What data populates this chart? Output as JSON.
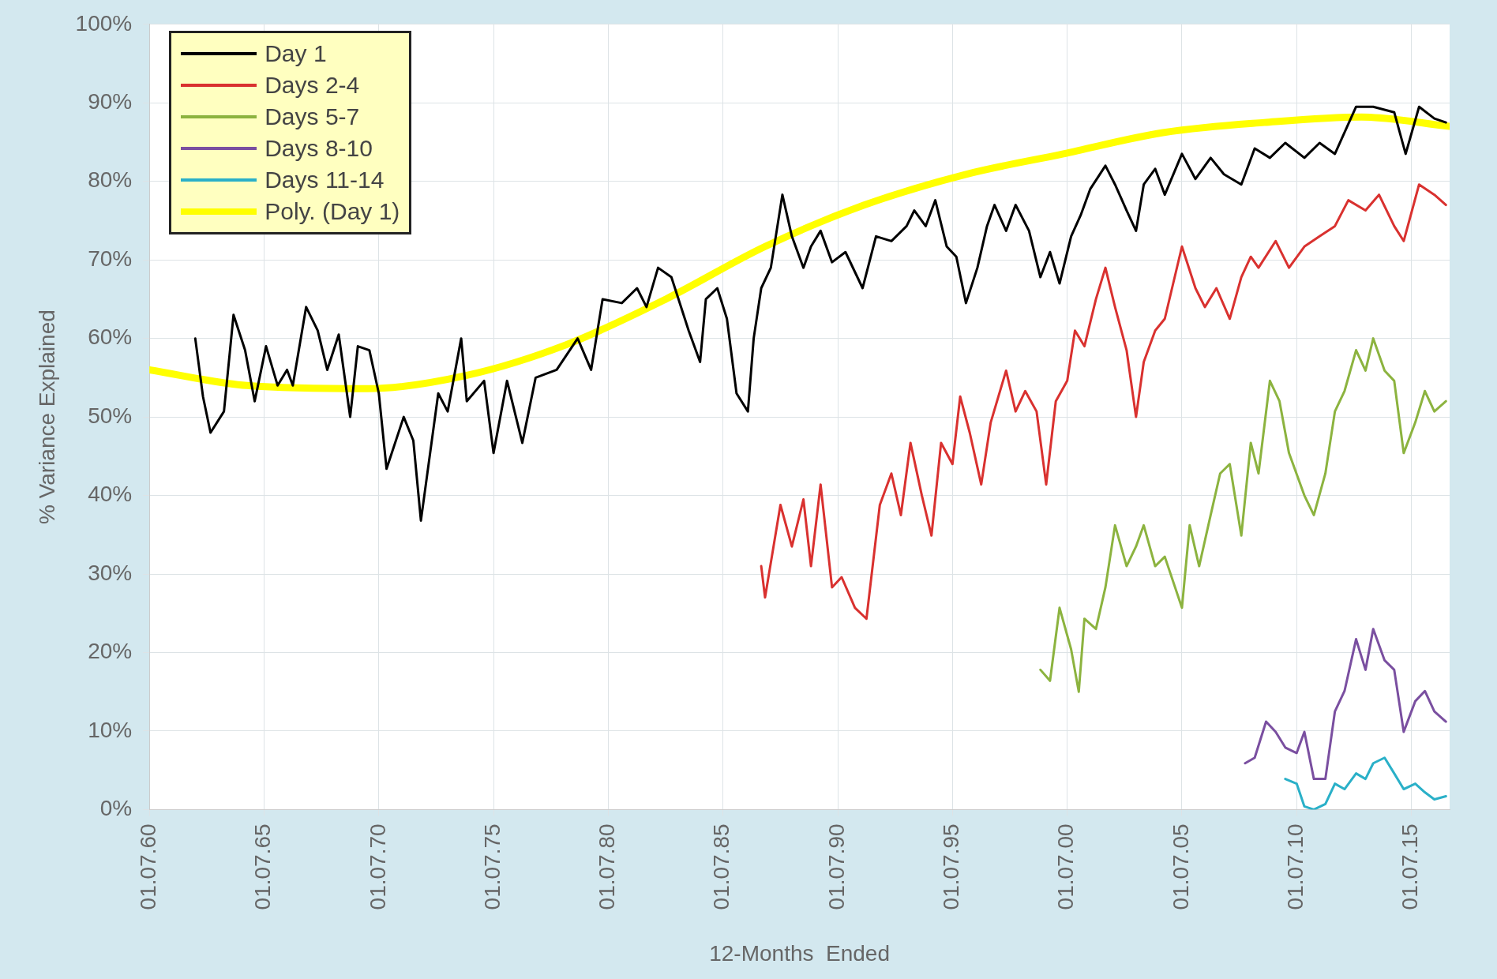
{
  "chart_data": {
    "type": "line",
    "xlabel": "12-Months  Ended",
    "ylabel": "% Variance Explained",
    "xlim": [
      "1960-07",
      "2017-03"
    ],
    "xticks": [
      {
        "value": "1960-07-01",
        "label": "01.07.60"
      },
      {
        "value": "1965-07-01",
        "label": "01.07.65"
      },
      {
        "value": "1970-07-01",
        "label": "01.07.70"
      },
      {
        "value": "1975-07-01",
        "label": "01.07.75"
      },
      {
        "value": "1980-07-01",
        "label": "01.07.80"
      },
      {
        "value": "1985-07-01",
        "label": "01.07.85"
      },
      {
        "value": "1990-07-01",
        "label": "01.07.90"
      },
      {
        "value": "1995-07-01",
        "label": "01.07.95"
      },
      {
        "value": "2000-07-01",
        "label": "01.07.00"
      },
      {
        "value": "2005-07-01",
        "label": "01.07.05"
      },
      {
        "value": "2010-07-01",
        "label": "01.07.10"
      },
      {
        "value": "2015-07-01",
        "label": "01.07.15"
      }
    ],
    "ylim": [
      0,
      100
    ],
    "yticks": [
      {
        "value": 0,
        "label": "0%"
      },
      {
        "value": 10,
        "label": "10%"
      },
      {
        "value": 20,
        "label": "20%"
      },
      {
        "value": 30,
        "label": "30%"
      },
      {
        "value": 40,
        "label": "40%"
      },
      {
        "value": 50,
        "label": "50%"
      },
      {
        "value": 60,
        "label": "60%"
      },
      {
        "value": 70,
        "label": "70%"
      },
      {
        "value": 80,
        "label": "80%"
      },
      {
        "value": 90,
        "label": "90%"
      },
      {
        "value": 100,
        "label": "100%"
      }
    ],
    "grid": true,
    "legend": "top left",
    "marker": "none",
    "line_style": "solid",
    "series": [
      {
        "name": "Day 1",
        "color": "#000000",
        "x": [
          "1962-07",
          "1962-11",
          "1963-03",
          "1963-10",
          "1964-03",
          "1964-09",
          "1965-02",
          "1965-08",
          "1966-02",
          "1966-07",
          "1966-10",
          "1967-05",
          "1967-11",
          "1968-04",
          "1968-10",
          "1969-04",
          "1969-08",
          "1970-02",
          "1970-07",
          "1970-11",
          "1971-08",
          "1972-01",
          "1972-05",
          "1973-02",
          "1973-07",
          "1974-02",
          "1974-05",
          "1975-02",
          "1975-07",
          "1976-02",
          "1976-10",
          "1977-05",
          "1978-04",
          "1979-03",
          "1979-10",
          "1980-04",
          "1981-02",
          "1981-10",
          "1982-03",
          "1982-09",
          "1983-04",
          "1984-01",
          "1984-07",
          "1984-10",
          "1985-04",
          "1985-09",
          "1986-02",
          "1986-08",
          "1986-11",
          "1987-03",
          "1987-08",
          "1988-02",
          "1988-07",
          "1989-01",
          "1989-05",
          "1989-10",
          "1990-04",
          "1990-11",
          "1991-08",
          "1992-03",
          "1992-11",
          "1993-07",
          "1993-11",
          "1994-05",
          "1994-10",
          "1995-04",
          "1995-09",
          "1996-02",
          "1996-08",
          "1997-01",
          "1997-05",
          "1997-11",
          "1998-04",
          "1998-11",
          "1999-05",
          "1999-10",
          "2000-03",
          "2000-09",
          "2001-02",
          "2001-07",
          "2002-03",
          "2002-08",
          "2003-02",
          "2003-07",
          "2003-11",
          "2004-05",
          "2004-10",
          "2005-07",
          "2006-02",
          "2006-10",
          "2007-05",
          "2008-02",
          "2008-09",
          "2009-05",
          "2010-01",
          "2010-11",
          "2011-07",
          "2012-03",
          "2013-02",
          "2013-11",
          "2014-10",
          "2015-04",
          "2015-11",
          "2016-07",
          "2017-01"
        ],
        "values": [
          60,
          52.6,
          48,
          50.7,
          63,
          58.5,
          52,
          59,
          54,
          56,
          54,
          64,
          61,
          56,
          60.5,
          50,
          59,
          58.5,
          53,
          43.4,
          50,
          47,
          36.8,
          53,
          50.7,
          60,
          52,
          54.6,
          45.4,
          54.6,
          46.7,
          55,
          56,
          60,
          56,
          65,
          64.5,
          66.4,
          64,
          69,
          67.8,
          61,
          57,
          65,
          66.4,
          62.5,
          53,
          50.7,
          60,
          66.4,
          69,
          78.3,
          73,
          69,
          71.7,
          73.7,
          69.7,
          71,
          66.4,
          73,
          72.4,
          74.3,
          76.3,
          74.3,
          77.6,
          71.7,
          70.4,
          64.5,
          69,
          74.3,
          77,
          73.7,
          77,
          73.7,
          67.8,
          71,
          67,
          73,
          75.7,
          79,
          82,
          79.6,
          76.3,
          73.7,
          79.6,
          81.6,
          78.3,
          83.5,
          80.3,
          83,
          80.9,
          79.6,
          84.2,
          83,
          84.9,
          83,
          84.9,
          83.5,
          89.5,
          89.5,
          88.8,
          83.5,
          89.5,
          88,
          87.5
        ]
      },
      {
        "name": "Days 2-4",
        "color": "#d9312f",
        "x": [
          "1987-03",
          "1987-05",
          "1988-01",
          "1988-07",
          "1989-01",
          "1989-05",
          "1989-10",
          "1990-04",
          "1990-09",
          "1991-04",
          "1991-10",
          "1992-05",
          "1992-11",
          "1993-04",
          "1993-09",
          "1994-03",
          "1994-08",
          "1995-01",
          "1995-07",
          "1995-11",
          "1996-04",
          "1996-10",
          "1997-03",
          "1997-11",
          "1998-04",
          "1998-09",
          "1999-03",
          "1999-08",
          "2000-01",
          "2000-07",
          "2000-11",
          "2001-04",
          "2001-10",
          "2002-03",
          "2002-08",
          "2003-02",
          "2003-07",
          "2003-11",
          "2004-05",
          "2004-10",
          "2005-07",
          "2006-02",
          "2006-07",
          "2007-01",
          "2007-08",
          "2008-02",
          "2008-07",
          "2008-11",
          "2009-08",
          "2010-03",
          "2010-11",
          "2011-07",
          "2012-03",
          "2012-10",
          "2013-07",
          "2014-02",
          "2014-10",
          "2015-03",
          "2015-11",
          "2016-07",
          "2017-01"
        ],
        "values": [
          31,
          27,
          38.8,
          33.5,
          39.5,
          31,
          41.4,
          28.3,
          29.6,
          25.7,
          24.3,
          38.8,
          42.8,
          37.5,
          46.7,
          40,
          34.9,
          46.7,
          44,
          52.6,
          48,
          41.4,
          49.3,
          55.9,
          50.7,
          53.3,
          50.7,
          41.4,
          52,
          54.6,
          61,
          59,
          65,
          69,
          64,
          58.5,
          50,
          57,
          61,
          62.5,
          71.7,
          66.4,
          64,
          66.4,
          62.5,
          67.8,
          70.4,
          69,
          72.4,
          69,
          71.7,
          73,
          74.3,
          77.6,
          76.3,
          78.3,
          74.3,
          72.4,
          79.6,
          78.3,
          77
        ]
      },
      {
        "name": "Days 5-7",
        "color": "#8cb33f",
        "x": [
          "1999-05",
          "1999-10",
          "2000-03",
          "2000-09",
          "2001-01",
          "2001-04",
          "2001-10",
          "2002-03",
          "2002-08",
          "2003-02",
          "2003-07",
          "2003-11",
          "2004-05",
          "2004-10",
          "2005-07",
          "2005-11",
          "2006-04",
          "2006-10",
          "2007-03",
          "2007-08",
          "2008-02",
          "2008-07",
          "2008-11",
          "2009-05",
          "2009-10",
          "2010-03",
          "2010-11",
          "2011-04",
          "2011-10",
          "2012-03",
          "2012-08",
          "2013-02",
          "2013-07",
          "2013-11",
          "2014-05",
          "2014-10",
          "2015-03",
          "2015-09",
          "2016-02",
          "2016-07",
          "2017-01"
        ],
        "values": [
          17.8,
          16.4,
          25.7,
          20.4,
          15,
          24.3,
          23,
          28.3,
          36.2,
          31,
          33.5,
          36.2,
          31,
          32.2,
          25.7,
          36.2,
          31,
          37.5,
          42.8,
          44,
          34.9,
          46.7,
          42.8,
          54.6,
          52,
          45.4,
          40,
          37.5,
          42.8,
          50.7,
          53.3,
          58.5,
          55.9,
          60,
          55.9,
          54.6,
          45.4,
          49.3,
          53.3,
          50.7,
          52
        ]
      },
      {
        "name": "Days 8-10",
        "color": "#7a4fa0",
        "x": [
          "2008-04",
          "2008-09",
          "2009-03",
          "2009-08",
          "2010-01",
          "2010-07",
          "2010-11",
          "2011-04",
          "2011-10",
          "2012-03",
          "2012-08",
          "2013-02",
          "2013-07",
          "2013-11",
          "2014-05",
          "2014-10",
          "2015-03",
          "2015-09",
          "2016-02",
          "2016-07",
          "2017-01"
        ],
        "values": [
          5.9,
          6.6,
          11.2,
          9.9,
          7.9,
          7.2,
          9.9,
          3.9,
          3.9,
          12.5,
          15.1,
          21.7,
          17.8,
          23,
          19,
          17.8,
          9.9,
          13.8,
          15.1,
          12.5,
          11.2
        ]
      },
      {
        "name": "Days 11-14",
        "color": "#2ab0c8",
        "x": [
          "2010-01",
          "2010-07",
          "2010-11",
          "2011-04",
          "2011-10",
          "2012-03",
          "2012-08",
          "2013-02",
          "2013-07",
          "2013-11",
          "2014-05",
          "2014-10",
          "2015-03",
          "2015-09",
          "2016-02",
          "2016-07",
          "2017-01"
        ],
        "values": [
          3.9,
          3.3,
          0.4,
          0,
          0.7,
          3.3,
          2.6,
          4.6,
          3.9,
          5.9,
          6.6,
          4.6,
          2.6,
          3.3,
          2.2,
          1.3,
          1.7
        ]
      },
      {
        "name": "Poly. (Day 1)",
        "type": "line",
        "color": "#ffff00",
        "x": [
          "1960-07",
          "1964-10",
          "1970-01",
          "1974-05",
          "1978-09",
          "1983-01",
          "1987-05",
          "1991-09",
          "1996-02",
          "2000-05",
          "2004-09",
          "2009-02",
          "2013-05",
          "2017-03"
        ],
        "values": [
          56,
          54,
          53.6,
          55.3,
          59.2,
          65,
          71.7,
          77,
          80.9,
          83.5,
          86.2,
          87.5,
          88.2,
          87
        ]
      }
    ]
  }
}
